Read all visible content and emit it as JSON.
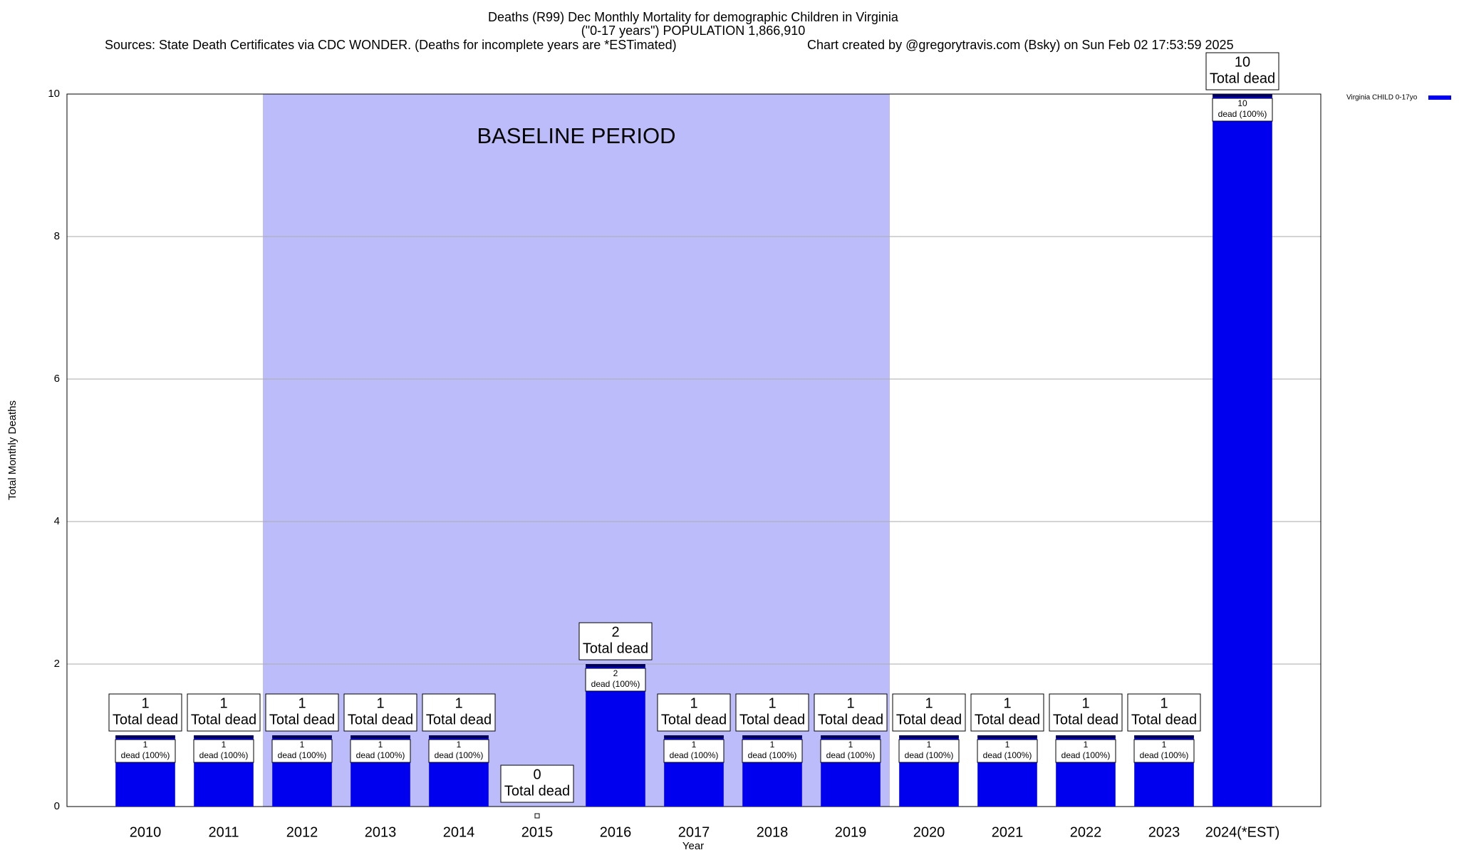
{
  "chart_data": {
    "type": "bar",
    "title": "Deaths (R99) Dec Monthly Mortality for demographic Children in Virginia",
    "subtitle": "(\"0-17 years\") POPULATION 1,866,910",
    "source": "Sources: State Death Certificates via CDC WONDER. (Deaths for incomplete years are *ESTimated)",
    "credit": "Chart created by @gregorytravis.com (Bsky) on Sun Feb 02 17:53:59 2025",
    "x_label": "Year",
    "y_label": "Total Monthly Deaths",
    "categories": [
      "2010",
      "2011",
      "2012",
      "2013",
      "2014",
      "2015",
      "2016",
      "2017",
      "2018",
      "2019",
      "2020",
      "2021",
      "2022",
      "2023",
      "2024(*EST)"
    ],
    "series": [
      {
        "name": "Virginia CHILD 0-17yo",
        "color": "#0000ee",
        "values": [
          1,
          1,
          1,
          1,
          1,
          0,
          2,
          1,
          1,
          1,
          1,
          1,
          1,
          1,
          10
        ]
      }
    ],
    "total_label": "Total dead",
    "segment_label": "dead (100%)",
    "baseline": {
      "label": "BASELINE PERIOD",
      "start": "2012",
      "end": "2019",
      "color": "#bcbcfa"
    },
    "ylim": [
      0,
      10
    ],
    "yticks": [
      0,
      2,
      4,
      6,
      8,
      10
    ],
    "grid": true,
    "legend": "top-right"
  }
}
